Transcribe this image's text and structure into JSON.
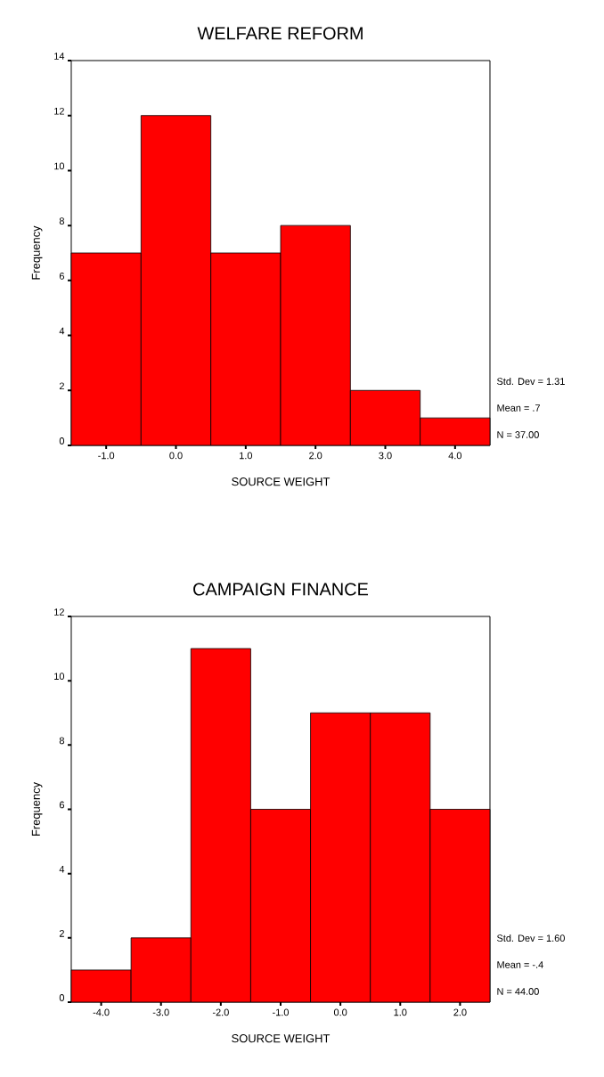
{
  "chart_data": [
    {
      "type": "histogram",
      "title": "WELFARE REFORM",
      "xlabel": "SOURCE WEIGHT",
      "ylabel": "Frequency",
      "color": "#ff0000",
      "bins": [
        -1.5,
        -0.5,
        0.5,
        1.5,
        2.5,
        3.5,
        4.5
      ],
      "values": [
        7,
        12,
        7,
        8,
        2,
        1
      ],
      "xlim": [
        -1.5,
        4.5
      ],
      "ylim": [
        0,
        14
      ],
      "xticks": [
        {
          "value": -1,
          "label": "-1.0"
        },
        {
          "value": 0,
          "label": "0.0"
        },
        {
          "value": 1,
          "label": "1.0"
        },
        {
          "value": 2,
          "label": "2.0"
        },
        {
          "value": 3,
          "label": "3.0"
        },
        {
          "value": 4,
          "label": "4.0"
        }
      ],
      "yticks": [
        0,
        2,
        4,
        6,
        8,
        10,
        12,
        14
      ],
      "annotations": [
        "Std. Dev = 1.31",
        "Mean = .7",
        "N = 37.00"
      ]
    },
    {
      "type": "histogram",
      "title": "CAMPAIGN FINANCE",
      "xlabel": "SOURCE WEIGHT",
      "ylabel": "Frequency",
      "color": "#ff0000",
      "bins": [
        -4.5,
        -3.5,
        -2.5,
        -1.5,
        -0.5,
        0.5,
        1.5,
        2.5
      ],
      "values": [
        1,
        2,
        11,
        6,
        9,
        9,
        6
      ],
      "xlim": [
        -4.5,
        2.5
      ],
      "ylim": [
        0,
        12
      ],
      "xticks": [
        {
          "value": -4,
          "label": "-4.0"
        },
        {
          "value": -3,
          "label": "-3.0"
        },
        {
          "value": -2,
          "label": "-2.0"
        },
        {
          "value": -1,
          "label": "-1.0"
        },
        {
          "value": 0,
          "label": "0.0"
        },
        {
          "value": 1,
          "label": "1.0"
        },
        {
          "value": 2,
          "label": "2.0"
        }
      ],
      "yticks": [
        0,
        2,
        4,
        6,
        8,
        10,
        12
      ],
      "annotations": [
        "Std. Dev = 1.60",
        "Mean = -.4",
        "N = 44.00"
      ]
    }
  ]
}
